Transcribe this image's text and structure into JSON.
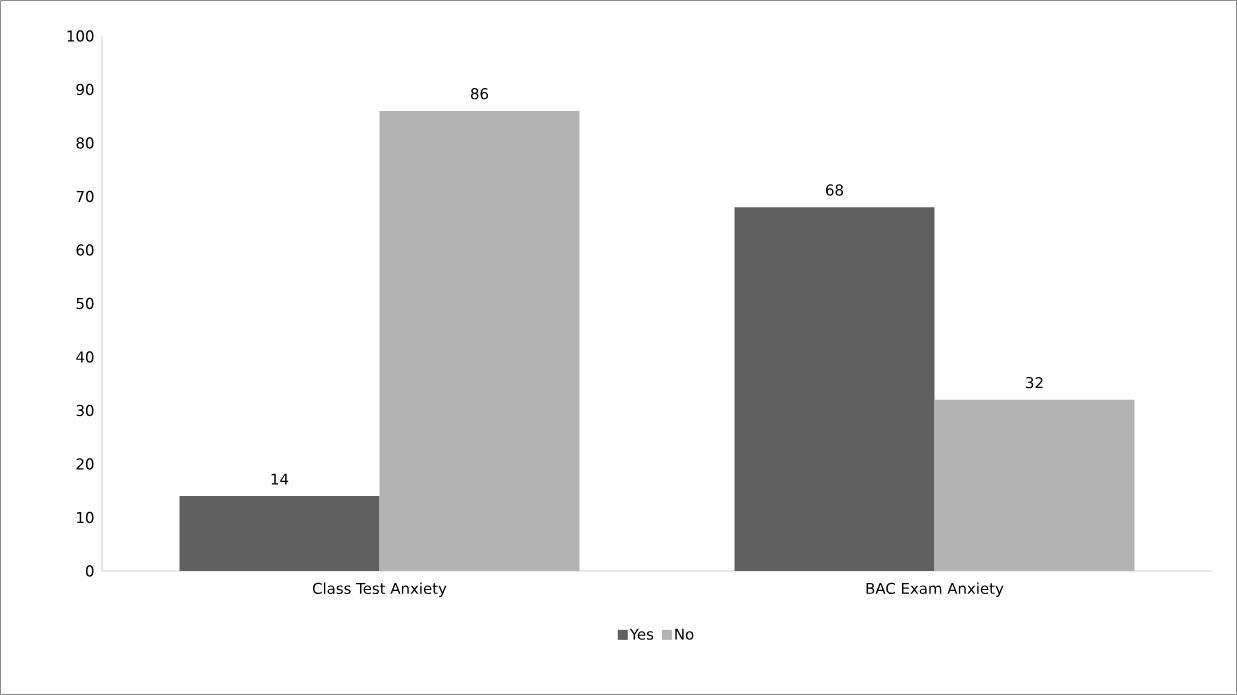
{
  "chart_data": {
    "type": "bar",
    "categories": [
      "Class Test Anxiety",
      "BAC Exam Anxiety"
    ],
    "series": [
      {
        "name": "Yes",
        "color": "#606060",
        "values": [
          14,
          68
        ]
      },
      {
        "name": "No",
        "color": "#b3b3b3",
        "values": [
          86,
          32
        ]
      }
    ],
    "ylim": [
      0,
      100
    ],
    "yticks": [
      0,
      10,
      20,
      30,
      40,
      50,
      60,
      70,
      80,
      90,
      100
    ],
    "data_labels": true,
    "legend": "bottom"
  }
}
